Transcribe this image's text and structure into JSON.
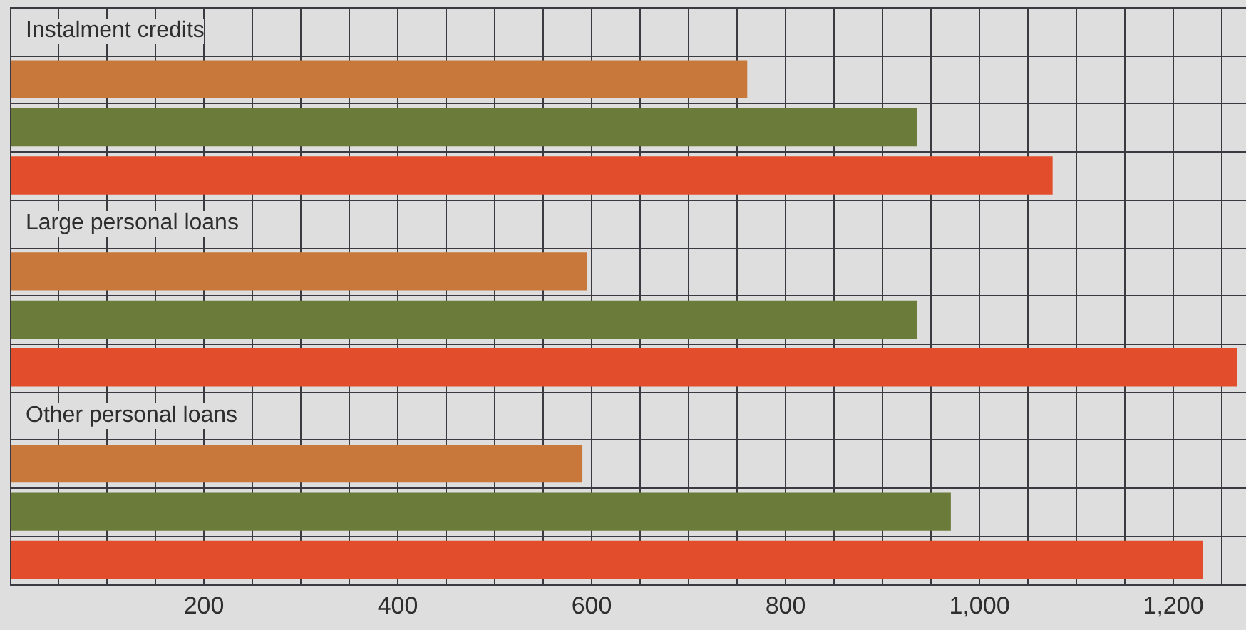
{
  "chart_data": {
    "type": "bar",
    "orientation": "horizontal",
    "categories": [
      "Instalment credits",
      "Large personal loans",
      "Other personal loans"
    ],
    "series": [
      {
        "color": "#c8783a",
        "values": [
          760,
          595,
          590
        ]
      },
      {
        "color": "#6b7b3a",
        "values": [
          935,
          935,
          970
        ]
      },
      {
        "color": "#e24e2c",
        "values": [
          1075,
          1265,
          1230
        ]
      }
    ],
    "xlim": [
      0,
      1275
    ],
    "xticks": [
      {
        "value": 50,
        "label": null
      },
      {
        "value": 100,
        "label": null
      },
      {
        "value": 150,
        "label": null
      },
      200,
      {
        "value": 250,
        "label": null
      },
      {
        "value": 300,
        "label": null
      },
      {
        "value": 350,
        "label": null
      },
      400,
      {
        "value": 450,
        "label": null
      },
      {
        "value": 500,
        "label": null
      },
      {
        "value": 550,
        "label": null
      },
      600,
      {
        "value": 650,
        "label": null
      },
      {
        "value": 700,
        "label": null
      },
      {
        "value": 750,
        "label": null
      },
      800,
      {
        "value": 850,
        "label": null
      },
      {
        "value": 900,
        "label": null
      },
      {
        "value": 950,
        "label": null
      },
      {
        "value": 1000,
        "label": "1,000"
      },
      {
        "value": 1050,
        "label": null
      },
      {
        "value": 1100,
        "label": null
      },
      {
        "value": 1150,
        "label": null
      },
      {
        "value": 1200,
        "label": "1,200"
      },
      {
        "value": 1250,
        "label": null
      }
    ],
    "grid": "x",
    "legend": false
  }
}
